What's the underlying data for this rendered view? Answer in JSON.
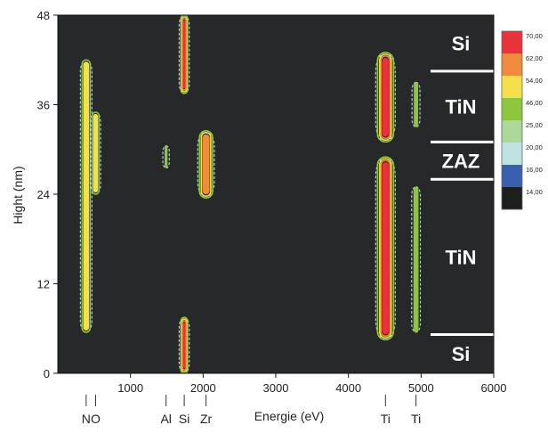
{
  "chart_data": {
    "type": "heatmap",
    "xlabel": "Energie (eV)",
    "ylabel": "Hight (nm)",
    "xlim": [
      0,
      6000
    ],
    "ylim": [
      0,
      48
    ],
    "xticks": [
      1000,
      2000,
      3000,
      4000,
      5000,
      6000
    ],
    "yticks": [
      0,
      12,
      24,
      36,
      48
    ],
    "background": "#26282a",
    "colorbar": {
      "levels": [
        "70,00",
        "62,00",
        "54,00",
        "46,00",
        "25,00",
        "20,00",
        "16,00",
        "14,00"
      ],
      "colors": [
        "#e8333a",
        "#f08a3c",
        "#f5df4a",
        "#8cc63f",
        "#aad89a",
        "#bfe3e0",
        "#3b5fb0",
        "#1e1e1e"
      ]
    },
    "layers": [
      {
        "label": "Si",
        "from": 40.5,
        "to": 48
      },
      {
        "label": "TiN",
        "from": 31,
        "to": 40.5
      },
      {
        "label": "ZAZ",
        "from": 26,
        "to": 31
      },
      {
        "label": "TiN",
        "from": 5.2,
        "to": 26
      },
      {
        "label": "Si",
        "from": 0,
        "to": 5.2
      }
    ],
    "element_markers": [
      {
        "label": "N",
        "energy": 390
      },
      {
        "label": "O",
        "energy": 520
      },
      {
        "label": "Al",
        "energy": 1490
      },
      {
        "label": "Si",
        "energy": 1740
      },
      {
        "label": "Zr",
        "energy": 2040
      },
      {
        "label": "Ti",
        "energy": 4510
      },
      {
        "label": "Ti",
        "energy": 4930
      }
    ],
    "features": [
      {
        "energy": 1740,
        "from": 37.5,
        "to": 48,
        "halfwidth": 45,
        "level": 3
      },
      {
        "energy": 1740,
        "from": 0,
        "to": 7.5,
        "halfwidth": 45,
        "level": 3
      },
      {
        "energy": 2040,
        "from": 23.5,
        "to": 32.5,
        "halfwidth": 90,
        "level": 2
      },
      {
        "energy": 4510,
        "from": 31,
        "to": 43,
        "halfwidth": 110,
        "level": 3
      },
      {
        "energy": 4510,
        "from": 4.5,
        "to": 29,
        "halfwidth": 110,
        "level": 3
      },
      {
        "energy": 390,
        "from": 5.5,
        "to": 42,
        "halfwidth": 55,
        "level": 1
      },
      {
        "energy": 520,
        "from": 24,
        "to": 35,
        "halfwidth": 45,
        "level": 1
      },
      {
        "energy": 4930,
        "from": 5.5,
        "to": 25,
        "halfwidth": 35,
        "level": 0
      },
      {
        "energy": 4930,
        "from": 33,
        "to": 39,
        "halfwidth": 30,
        "level": 0
      },
      {
        "energy": 1490,
        "from": 27.5,
        "to": 30.5,
        "halfwidth": 20,
        "level": 0
      }
    ]
  }
}
